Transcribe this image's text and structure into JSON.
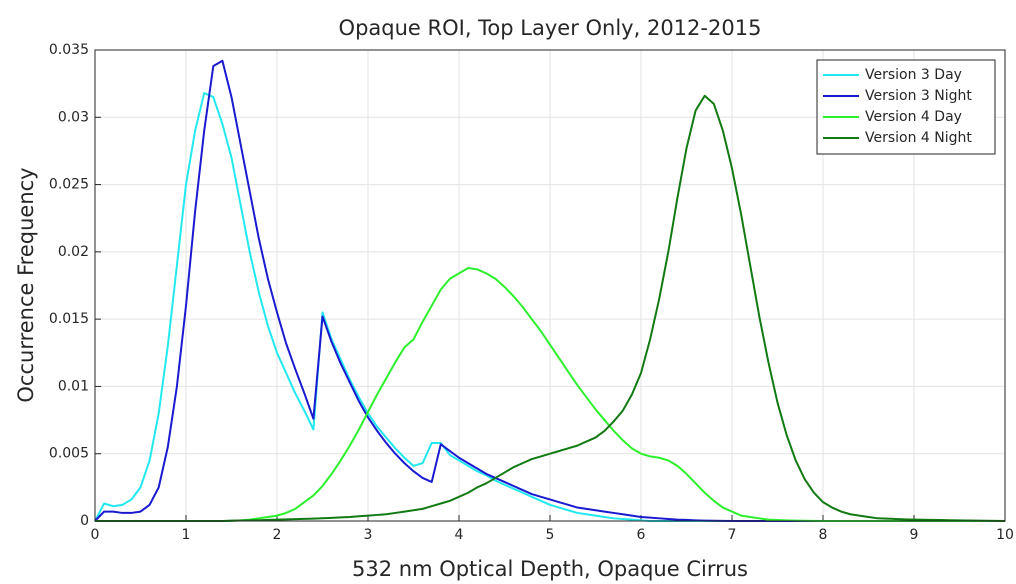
{
  "chart_data": {
    "type": "line",
    "title": "Opaque ROI, Top Layer Only, 2012-2015",
    "xlabel": "532 nm Optical Depth, Opaque Cirrus",
    "ylabel": "Occurrence Frequency",
    "xlim": [
      0,
      10
    ],
    "ylim": [
      0,
      0.035
    ],
    "xticks": [
      0,
      1,
      2,
      3,
      4,
      5,
      6,
      7,
      8,
      9,
      10
    ],
    "yticks": [
      0,
      0.005,
      0.01,
      0.015,
      0.02,
      0.025,
      0.03,
      0.035
    ],
    "grid": true,
    "legend": "top-right",
    "x": [
      0,
      0.1,
      0.2,
      0.3,
      0.4,
      0.5,
      0.6,
      0.7,
      0.8,
      0.9,
      1,
      1.1,
      1.2,
      1.3,
      1.4,
      1.5,
      1.6,
      1.7,
      1.8,
      1.9,
      2,
      2.1,
      2.2,
      2.3,
      2.4,
      2.5,
      2.6,
      2.7,
      2.8,
      2.9,
      3,
      3.1,
      3.2,
      3.3,
      3.4,
      3.5,
      3.6,
      3.7,
      3.8,
      3.9,
      4,
      4.1,
      4.2,
      4.3,
      4.4,
      4.5,
      4.6,
      4.7,
      4.8,
      4.9,
      5,
      5.1,
      5.2,
      5.3,
      5.4,
      5.5,
      5.6,
      5.7,
      5.8,
      5.9,
      6,
      6.1,
      6.2,
      6.3,
      6.4,
      6.5,
      6.6,
      6.7,
      6.8,
      6.9,
      7,
      7.1,
      7.2,
      7.3,
      7.4,
      7.5,
      7.6,
      7.7,
      7.8,
      7.9,
      8,
      8.1,
      8.2,
      8.3,
      8.4,
      8.5,
      8.6,
      8.7,
      8.8,
      8.9,
      9,
      9.1,
      9.2,
      9.3,
      9.4,
      9.5,
      9.6,
      9.7,
      9.8,
      9.9,
      10
    ],
    "series": [
      {
        "name": "Version 3 Day",
        "color": "#22e8f0",
        "values": [
          0,
          0.0013,
          0.0011,
          0.0012,
          0.0016,
          0.0025,
          0.0045,
          0.008,
          0.013,
          0.019,
          0.025,
          0.029,
          0.0318,
          0.0315,
          0.0295,
          0.027,
          0.0235,
          0.02,
          0.017,
          0.0145,
          0.0125,
          0.011,
          0.0095,
          0.0082,
          0.0068,
          0.0155,
          0.0135,
          0.012,
          0.0105,
          0.0092,
          0.008,
          0.007,
          0.0062,
          0.0054,
          0.0047,
          0.0041,
          0.0043,
          0.0058,
          0.0058,
          0.0049,
          0.0045,
          0.0041,
          0.0037,
          0.0034,
          0.003,
          0.0027,
          0.0024,
          0.0021,
          0.0018,
          0.0015,
          0.0012,
          0.001,
          0.0008,
          0.0006,
          0.0005,
          0.0004,
          0.0003,
          0.0002,
          0.00015,
          0.0001,
          5e-05,
          0,
          0,
          0,
          0,
          0,
          0,
          0,
          0,
          0,
          0,
          0,
          0,
          0,
          0,
          0,
          0,
          0,
          0,
          0,
          0,
          0,
          0,
          0,
          0,
          0,
          0,
          0,
          0,
          0,
          0,
          0,
          0,
          0,
          0,
          0,
          0,
          0,
          0,
          0,
          0
        ]
      },
      {
        "name": "Version 3 Night",
        "color": "#1a1ad0",
        "values": [
          0,
          0.0007,
          0.0007,
          0.0006,
          0.0006,
          0.0007,
          0.0012,
          0.0025,
          0.0055,
          0.01,
          0.016,
          0.023,
          0.029,
          0.0338,
          0.0342,
          0.0315,
          0.028,
          0.0245,
          0.021,
          0.018,
          0.0155,
          0.0132,
          0.0113,
          0.0095,
          0.0076,
          0.0152,
          0.0133,
          0.0117,
          0.0103,
          0.0089,
          0.0077,
          0.0067,
          0.0058,
          0.005,
          0.0043,
          0.0037,
          0.0032,
          0.0029,
          0.0057,
          0.0052,
          0.0047,
          0.0043,
          0.0039,
          0.0035,
          0.0032,
          0.0029,
          0.0026,
          0.0023,
          0.002,
          0.0018,
          0.0016,
          0.0014,
          0.0012,
          0.001,
          0.0009,
          0.0008,
          0.0007,
          0.0006,
          0.0005,
          0.0004,
          0.0003,
          0.00025,
          0.0002,
          0.00015,
          0.0001,
          8e-05,
          5e-05,
          3e-05,
          2e-05,
          1e-05,
          0,
          0,
          0,
          0,
          0,
          0,
          0,
          0,
          0,
          0,
          0,
          0,
          0,
          0,
          0,
          0,
          0,
          0,
          0,
          0,
          0,
          0,
          0,
          0,
          0,
          0,
          0,
          0,
          0,
          0,
          0
        ]
      },
      {
        "name": "Version 4 Day",
        "color": "#2cf02c",
        "values": [
          0,
          0,
          0,
          0,
          0,
          0,
          0,
          0,
          0,
          0,
          0,
          0,
          0,
          0,
          0,
          0,
          5e-05,
          0.0001,
          0.0002,
          0.0003,
          0.0004,
          0.0006,
          0.0009,
          0.0014,
          0.0019,
          0.0026,
          0.0035,
          0.0045,
          0.0056,
          0.0068,
          0.0081,
          0.0094,
          0.0106,
          0.0118,
          0.0129,
          0.0135,
          0.0148,
          0.016,
          0.0172,
          0.018,
          0.0184,
          0.0188,
          0.0187,
          0.0184,
          0.018,
          0.0174,
          0.0167,
          0.0159,
          0.015,
          0.0141,
          0.0131,
          0.0121,
          0.0111,
          0.0101,
          0.0092,
          0.0083,
          0.0075,
          0.0067,
          0.006,
          0.0054,
          0.005,
          0.0048,
          0.0047,
          0.0045,
          0.0041,
          0.0035,
          0.0028,
          0.0021,
          0.0015,
          0.001,
          0.0007,
          0.0004,
          0.0003,
          0.0002,
          0.0001,
          7e-05,
          5e-05,
          3e-05,
          2e-05,
          1e-05,
          0,
          0,
          0,
          0,
          0,
          0,
          0,
          0,
          0,
          0,
          0,
          0,
          0,
          0,
          0,
          0,
          0,
          0,
          0,
          0,
          0
        ]
      },
      {
        "name": "Version 4 Night",
        "color": "#127a12",
        "values": [
          0,
          0,
          0,
          0,
          0,
          0,
          0,
          0,
          0,
          0,
          0,
          0,
          0,
          0,
          0,
          3e-05,
          4e-05,
          5e-05,
          6e-05,
          8e-05,
          0.0001,
          0.00012,
          0.00014,
          0.00016,
          0.00018,
          0.0002,
          0.00023,
          0.00027,
          0.0003,
          0.00035,
          0.0004,
          0.00045,
          0.0005,
          0.0006,
          0.0007,
          0.0008,
          0.0009,
          0.0011,
          0.0013,
          0.0015,
          0.0018,
          0.0021,
          0.0025,
          0.0028,
          0.0032,
          0.0036,
          0.004,
          0.0043,
          0.0046,
          0.0048,
          0.005,
          0.0052,
          0.0054,
          0.0056,
          0.0059,
          0.0062,
          0.0067,
          0.0074,
          0.0082,
          0.0094,
          0.011,
          0.0135,
          0.0165,
          0.02,
          0.024,
          0.0277,
          0.0305,
          0.0316,
          0.031,
          0.029,
          0.0262,
          0.0228,
          0.019,
          0.0152,
          0.0118,
          0.0088,
          0.0064,
          0.0045,
          0.0031,
          0.0021,
          0.0014,
          0.001,
          0.0007,
          0.0005,
          0.0004,
          0.0003,
          0.0002,
          0.00018,
          0.00015,
          0.00012,
          0.0001,
          9e-05,
          8e-05,
          7e-05,
          6e-05,
          5e-05,
          4e-05,
          3e-05,
          2e-05,
          1e-05,
          0
        ]
      }
    ]
  }
}
